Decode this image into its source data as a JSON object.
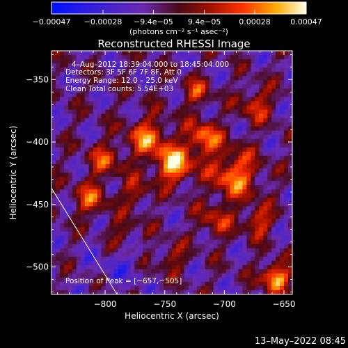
{
  "chart_data": {
    "type": "heatmap",
    "title": "Reconstructed RHESSI Image",
    "xlabel": "Heliocentric X (arcsec)",
    "ylabel": "Heliocentric Y (arcsec)",
    "xlim": [
      -845,
      -643
    ],
    "ylim": [
      -522,
      -327
    ],
    "x_ticks": [
      -800,
      -750,
      -700,
      -650
    ],
    "x_tick_labels": [
      "−800",
      "−750",
      "−700",
      "−650"
    ],
    "y_ticks": [
      -350,
      -400,
      -450,
      -500
    ],
    "y_tick_labels": [
      "−350",
      "−400",
      "−450",
      "−500"
    ],
    "colorbar": {
      "range": [
        -0.00047,
        0.00047
      ],
      "tick_values": [
        -0.00047,
        -0.00028,
        -9.4e-05,
        9.4e-05,
        0.00028,
        0.00047
      ],
      "tick_labels": [
        "−0.00047",
        "−0.00028",
        "−9.4e−05",
        "9.4e−05",
        "0.00028",
        "0.00047"
      ],
      "units": "(photons cm⁻² s⁻¹ asec⁻²)"
    },
    "annotations": {
      "time": "4–Aug–2012 18:39:04.000 to 18:45:04.000",
      "detectors": "Detectors: 3F 5F 6F 7F 8F, Att 0",
      "energy": "Energy Range: 12.0 – 25.0 keV",
      "clean": "Clean     Total counts: 5.54E+03",
      "peak": "Position of Peak = [−657,−505]"
    },
    "limb_line": [
      [
        -845,
        -437
      ],
      [
        -790,
        -522
      ]
    ],
    "grid": false
  },
  "footer": {
    "timestamp": "13–May–2022 08:45"
  }
}
